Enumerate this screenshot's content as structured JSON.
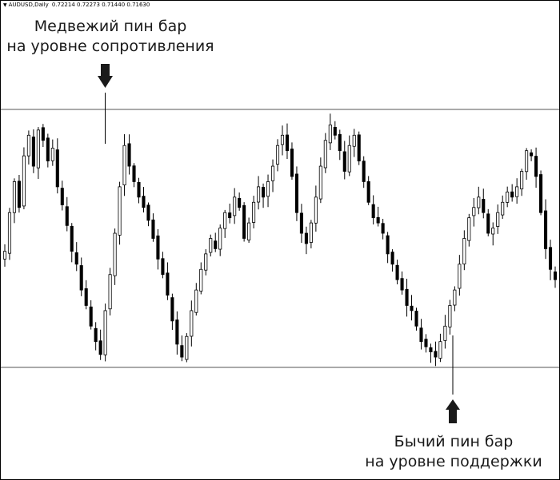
{
  "header": {
    "symbol": "AUDUSD,Daily",
    "ohlc": [
      "0.72214",
      "0.72273",
      "0.71440",
      "0.71630"
    ]
  },
  "annotations": {
    "resistance": {
      "line1": "Медвежий пин бар",
      "line2": "на уровне сопротивления",
      "arrow": "arrow-down-icon"
    },
    "support": {
      "line1": "Бычий пин бар",
      "line2": "на уровне поддержки",
      "arrow": "arrow-up-icon"
    }
  },
  "chart_data": {
    "type": "candlestick",
    "symbol": "AUDUSD",
    "timeframe": "Daily",
    "levels": [
      {
        "name": "resistance",
        "value": 1.0
      },
      {
        "name": "support",
        "value": 0.0
      }
    ],
    "price_scale_note": "no price axis printed; closes expressed relative to the support (0) / resistance (1) band",
    "closes": [
      0.45,
      0.6,
      0.72,
      0.62,
      0.82,
      0.9,
      0.78,
      0.92,
      0.88,
      0.8,
      0.85,
      0.7,
      0.63,
      0.55,
      0.45,
      0.4,
      0.3,
      0.24,
      0.16,
      0.1,
      0.05,
      0.22,
      0.36,
      0.52,
      0.7,
      0.86,
      0.78,
      0.72,
      0.66,
      0.62,
      0.57,
      0.5,
      0.42,
      0.36,
      0.28,
      0.18,
      0.09,
      0.04,
      0.12,
      0.22,
      0.3,
      0.38,
      0.44,
      0.5,
      0.46,
      0.54,
      0.6,
      0.58,
      0.66,
      0.62,
      0.5,
      0.56,
      0.64,
      0.7,
      0.66,
      0.72,
      0.78,
      0.86,
      0.9,
      0.84,
      0.74,
      0.6,
      0.52,
      0.48,
      0.56,
      0.66,
      0.78,
      0.88,
      0.94,
      0.9,
      0.84,
      0.76,
      0.86,
      0.9,
      0.8,
      0.72,
      0.64,
      0.58,
      0.56,
      0.52,
      0.44,
      0.4,
      0.34,
      0.3,
      0.24,
      0.22,
      0.16,
      0.1,
      0.08,
      0.06,
      0.04,
      0.1,
      0.16,
      0.24,
      0.3,
      0.4,
      0.5,
      0.58,
      0.62,
      0.66,
      0.6,
      0.52,
      0.54,
      0.6,
      0.64,
      0.68,
      0.66,
      0.7,
      0.76,
      0.84,
      0.82,
      0.74,
      0.6,
      0.46,
      0.38,
      0.34
    ]
  }
}
